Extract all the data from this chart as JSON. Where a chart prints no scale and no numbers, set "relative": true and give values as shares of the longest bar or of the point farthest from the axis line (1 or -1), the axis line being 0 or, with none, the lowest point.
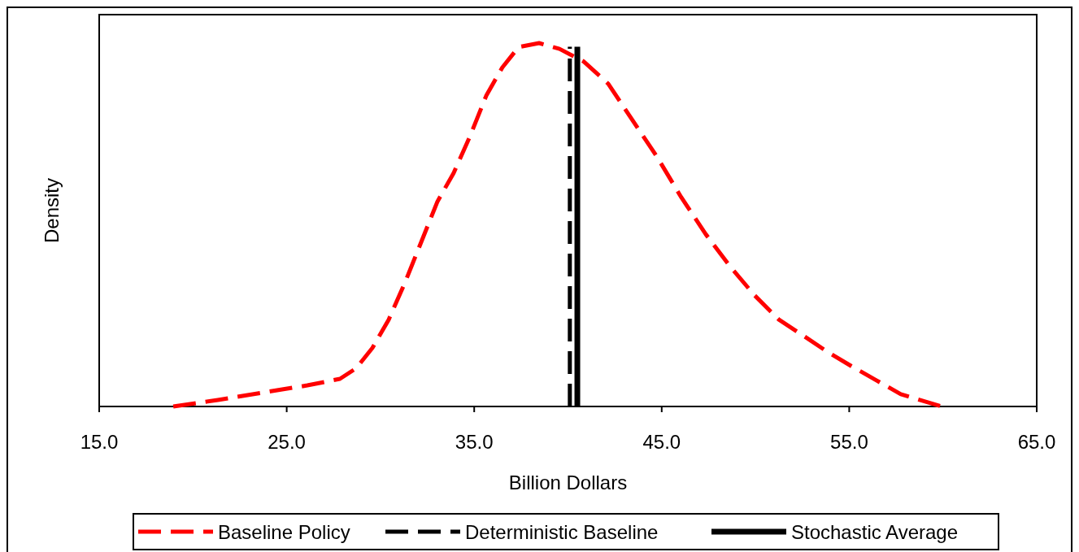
{
  "chart_data": {
    "type": "line",
    "xlabel": "Billion Dollars",
    "ylabel": "Density",
    "relative": true,
    "xlim": [
      15,
      65
    ],
    "xticks": [
      {
        "value": 15,
        "label": "15.0"
      },
      {
        "value": 25,
        "label": "25.0"
      },
      {
        "value": 35,
        "label": "35.0"
      },
      {
        "value": 45,
        "label": "45.0"
      },
      {
        "value": 55,
        "label": "55.0"
      },
      {
        "value": 65,
        "label": "65.0"
      }
    ],
    "legend": "bottom",
    "grid": false,
    "series": [
      {
        "name": "Baseline Policy",
        "color": "#ff0000",
        "line_style": "dashed",
        "x": [
          18.95,
          21.33,
          23.93,
          26.1,
          27.84,
          28.7,
          29.57,
          30.44,
          31.3,
          32.17,
          33.04,
          33.9,
          34.77,
          35.64,
          36.5,
          37.37,
          38.46,
          39.55,
          40.85,
          42.15,
          43.45,
          44.75,
          46.05,
          47.35,
          48.65,
          49.95,
          51.25,
          52.55,
          53.85,
          55.15,
          56.45,
          57.75,
          59.93
        ],
        "values": [
          0,
          0.018,
          0.04,
          0.058,
          0.076,
          0.105,
          0.161,
          0.239,
          0.34,
          0.452,
          0.564,
          0.642,
          0.743,
          0.855,
          0.933,
          0.989,
          1,
          0.984,
          0.949,
          0.888,
          0.787,
          0.687,
          0.575,
          0.474,
          0.385,
          0.306,
          0.239,
          0.195,
          0.15,
          0.11,
          0.072,
          0.034,
          0
        ]
      },
      {
        "name": "Deterministic Baseline",
        "color": "#000000",
        "line_style": "dashed",
        "x": [
          40.1,
          40.1
        ],
        "values": [
          0,
          0.99
        ]
      },
      {
        "name": "Stochastic Average",
        "color": "#000000",
        "line_style": "solid",
        "x": [
          40.5,
          40.5
        ],
        "values": [
          0,
          0.99
        ]
      }
    ]
  }
}
